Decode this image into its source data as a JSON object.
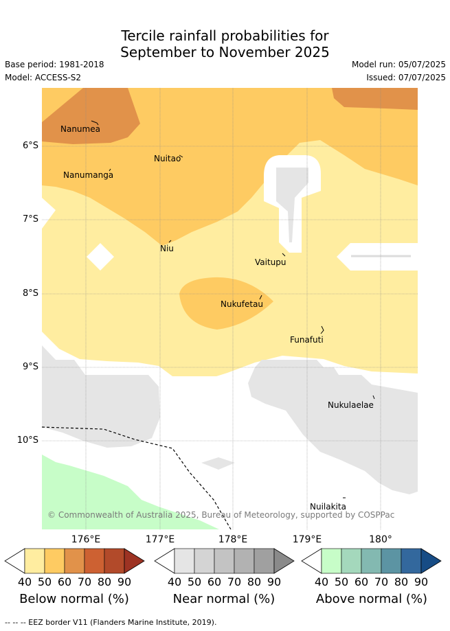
{
  "title_line1": "Tercile rainfall probabilities for",
  "title_line2": "September to November 2025",
  "base_period": "Base period: 1981-2018",
  "model": "Model: ACCESS-S2",
  "model_run": "Model run: 05/07/2025",
  "issued": "Issued: 07/07/2025",
  "lat_labels": [
    "6°S",
    "7°S",
    "8°S",
    "9°S",
    "10°S"
  ],
  "lon_labels": [
    "176°E",
    "177°E",
    "178°E",
    "179°E",
    "180°"
  ],
  "places": [
    "Nanumea",
    "Nuitao",
    "Nanumanga",
    "Niu",
    "Vaitupu",
    "Nukufetau",
    "Funafuti",
    "Nukulaelae",
    "Nuilakita"
  ],
  "copyright": "© Commonwealth of Australia 2025, Bureau of Meteorology, supported by COSPPac",
  "legend": {
    "ticks": [
      "40",
      "50",
      "60",
      "70",
      "80",
      "90"
    ],
    "below_caption": "Below normal (%)",
    "near_caption": "Near normal (%)",
    "above_caption": "Above normal (%)",
    "below_colors": [
      "#ffeda0",
      "#fecb62",
      "#e1924a",
      "#cd6132",
      "#b24a2a",
      "#9d3323"
    ],
    "near_colors": [
      "#e5e5e5",
      "#d4d4d4",
      "#c3c3c3",
      "#b2b2b2",
      "#a0a0a0",
      "#8a8a8a"
    ],
    "above_colors": [
      "#c7fdc8",
      "#a4d8bc",
      "#83b9b1",
      "#5c94a3",
      "#33689d",
      "#174c85"
    ]
  },
  "footer": "--  --  -- EEZ border V11 (Flanders Marine Institute, 2019)."
}
